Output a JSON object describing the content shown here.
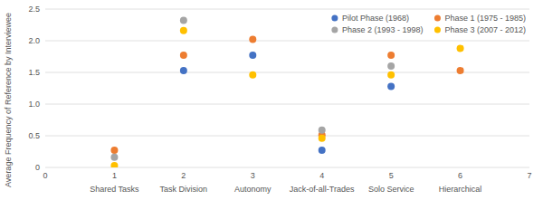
{
  "chart_data": {
    "type": "scatter",
    "y_label": "Average Frequency of Reference by Interviewee",
    "xlim": [
      0,
      7
    ],
    "xticks": [
      0,
      1,
      2,
      3,
      4,
      5,
      6,
      7
    ],
    "ylim": [
      0,
      2.5
    ],
    "yticks": [
      0,
      0.5,
      {
        "value": 1,
        "label": "1.0"
      },
      1.5,
      {
        "value": 2,
        "label": "2.0"
      },
      2.5
    ],
    "annotations": [
      {
        "text": "Shared Tasks",
        "x": 1
      },
      {
        "text": "Task Division",
        "x": 2
      },
      {
        "text": "Autonomy",
        "x": 3
      },
      {
        "text": "Jack-of-all-Trades",
        "x": 4
      },
      {
        "text": "Solo Service",
        "x": 5
      },
      {
        "text": "Hierarchical",
        "x": 6
      }
    ],
    "series": [
      {
        "name": "Pilot Phase (1968)",
        "color": "#4472C4",
        "x": [
          2,
          3,
          4,
          5
        ],
        "values": [
          1.53,
          1.77,
          0.27,
          1.28
        ]
      },
      {
        "name": "Phase 1 (1975 - 1985)",
        "color": "#ED7D31",
        "x": [
          1,
          2,
          3,
          4,
          5,
          6
        ],
        "values": [
          0.27,
          1.77,
          2.02,
          0.51,
          1.77,
          1.53
        ]
      },
      {
        "name": "Phase 2 (1993 - 1998)",
        "color": "#A5A5A5",
        "x": [
          1,
          2,
          4,
          5
        ],
        "values": [
          0.16,
          2.32,
          0.59,
          1.6
        ]
      },
      {
        "name": "Phase 3 (2007 - 2012)",
        "color": "#FFC000",
        "x": [
          1,
          2,
          3,
          4,
          5,
          6
        ],
        "values": [
          0.03,
          2.16,
          1.46,
          0.46,
          1.46,
          1.88
        ]
      }
    ],
    "grid": true,
    "legend": "upper right"
  }
}
